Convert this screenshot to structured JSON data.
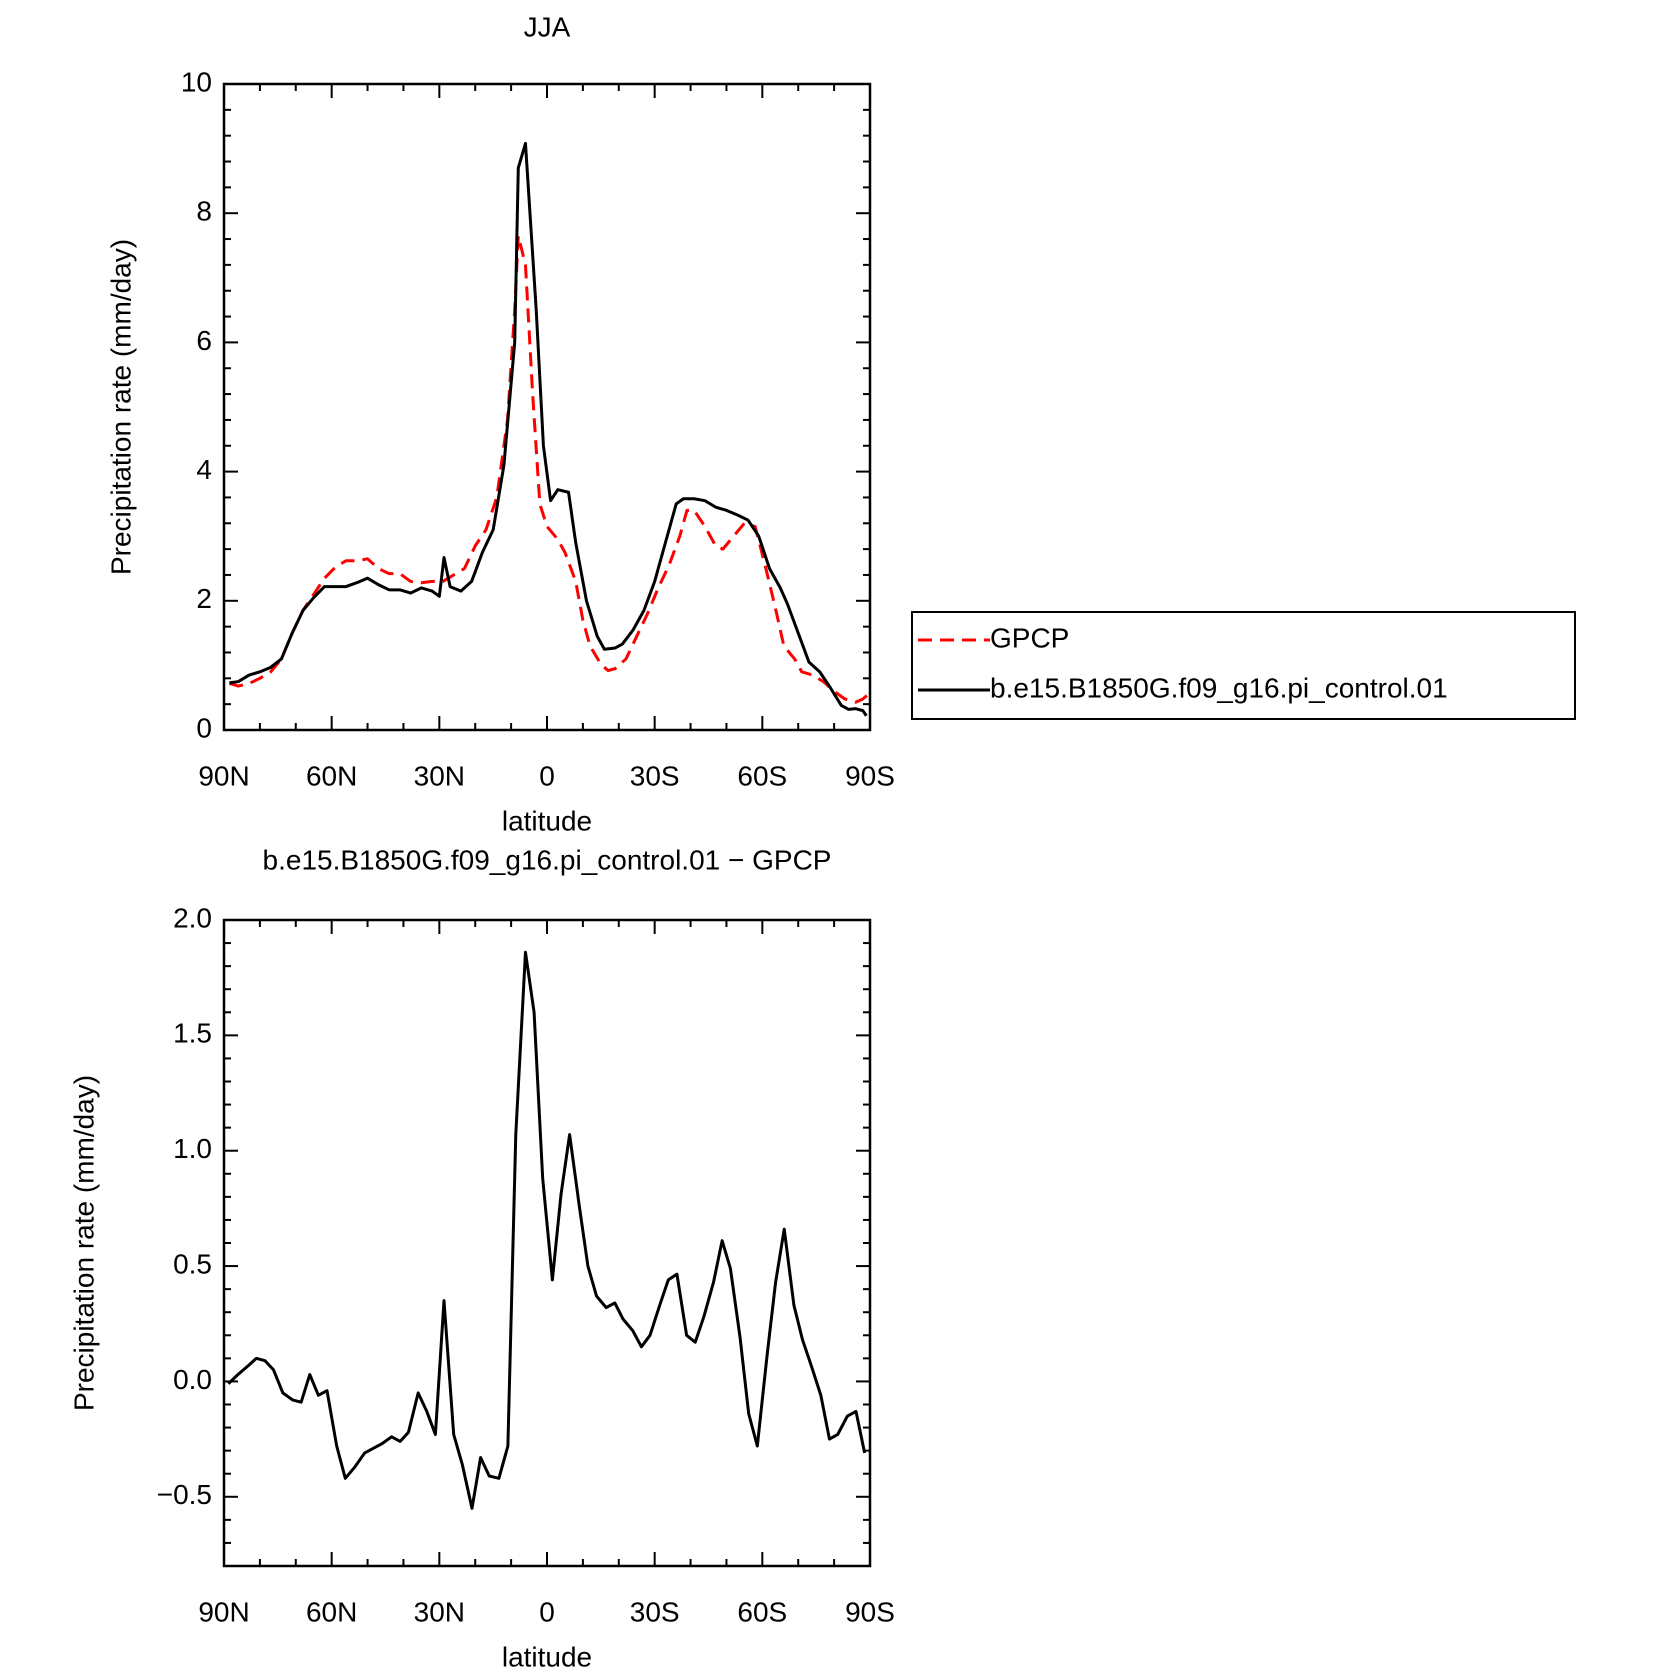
{
  "chart_data": [
    {
      "type": "line",
      "title": "JJA",
      "xlabel": "latitude",
      "ylabel": "Precipitation rate (mm/day)",
      "xlim": [
        90,
        -90
      ],
      "xticks": [
        {
          "value": 90,
          "label": "90N"
        },
        {
          "value": 60,
          "label": "60N"
        },
        {
          "value": 30,
          "label": "30N"
        },
        0,
        {
          "value": -30,
          "label": "30S"
        },
        {
          "value": -60,
          "label": "60S"
        },
        {
          "value": -90,
          "label": "90S"
        }
      ],
      "ylim": [
        0,
        10
      ],
      "yticks": [
        0,
        2,
        4,
        6,
        8,
        10
      ],
      "legend": "right",
      "series": [
        {
          "name": "GPCP",
          "color": "#ff0000",
          "linestyle": "dashed",
          "x": [
            88.5,
            86,
            83,
            80,
            77,
            74,
            71,
            68,
            65,
            62,
            59,
            56,
            53,
            50,
            47,
            44,
            41,
            38,
            35,
            32,
            29,
            26,
            23,
            20,
            17,
            14,
            11,
            9,
            8,
            6,
            4,
            2,
            0,
            -3,
            -5,
            -8,
            -10,
            -12,
            -15,
            -17,
            -19,
            -22,
            -25,
            -28,
            -31,
            -34,
            -37,
            -39,
            -41,
            -44,
            -47,
            -49,
            -52,
            -55,
            -58,
            -61,
            -64,
            -66,
            -69,
            -71,
            -74,
            -77,
            -80,
            -83,
            -86,
            -88,
            -89.5
          ],
          "values": [
            0.72,
            0.68,
            0.72,
            0.8,
            0.9,
            1.1,
            1.5,
            1.85,
            2.1,
            2.35,
            2.52,
            2.62,
            2.62,
            2.65,
            2.5,
            2.42,
            2.42,
            2.3,
            2.28,
            2.3,
            2.3,
            2.4,
            2.5,
            2.85,
            3.1,
            3.6,
            4.8,
            6.5,
            7.65,
            7.2,
            5.2,
            3.5,
            3.15,
            2.95,
            2.75,
            2.3,
            1.7,
            1.3,
            1.02,
            0.92,
            0.95,
            1.1,
            1.45,
            1.8,
            2.2,
            2.55,
            3.0,
            3.4,
            3.4,
            3.15,
            2.85,
            2.8,
            3.0,
            3.2,
            3.15,
            2.5,
            1.8,
            1.3,
            1.1,
            0.9,
            0.85,
            0.75,
            0.6,
            0.48,
            0.43,
            0.48,
            0.55
          ]
        },
        {
          "name": "b.e15.B1850G.f09_g16.pi_control.01",
          "color": "#000000",
          "linestyle": "solid",
          "x": [
            88.5,
            86,
            83,
            80,
            77,
            74,
            71,
            68,
            65,
            62,
            59,
            56,
            53,
            50,
            47,
            44,
            41,
            38,
            35,
            32,
            30,
            28.7,
            27,
            24,
            21,
            18,
            15,
            12,
            9,
            8,
            6,
            3,
            1,
            -1,
            -3,
            -6,
            -8,
            -11,
            -14,
            -16,
            -19,
            -21,
            -24,
            -27,
            -30,
            -33,
            -36,
            -38,
            -41,
            -44,
            -47,
            -50,
            -53,
            -56,
            -59,
            -62,
            -65,
            -67,
            -70,
            -73,
            -76,
            -79,
            -82,
            -84,
            -86,
            -88,
            -89
          ],
          "values": [
            0.73,
            0.75,
            0.85,
            0.9,
            0.97,
            1.1,
            1.5,
            1.85,
            2.05,
            2.22,
            2.22,
            2.22,
            2.28,
            2.35,
            2.25,
            2.17,
            2.17,
            2.12,
            2.2,
            2.15,
            2.07,
            2.67,
            2.22,
            2.15,
            2.3,
            2.75,
            3.1,
            4.1,
            6.0,
            8.7,
            9.08,
            6.5,
            4.4,
            3.55,
            3.72,
            3.68,
            2.9,
            2.0,
            1.45,
            1.25,
            1.27,
            1.33,
            1.55,
            1.85,
            2.3,
            2.9,
            3.5,
            3.58,
            3.58,
            3.55,
            3.45,
            3.4,
            3.33,
            3.25,
            3.0,
            2.5,
            2.2,
            1.95,
            1.5,
            1.05,
            0.9,
            0.65,
            0.38,
            0.32,
            0.33,
            0.3,
            0.22
          ]
        }
      ]
    },
    {
      "type": "line",
      "title": "b.e15.B1850G.f09_g16.pi_control.01 − GPCP",
      "xlabel": "latitude",
      "ylabel": "Precipitation rate (mm/day)",
      "xlim": [
        90,
        -90
      ],
      "xticks": [
        {
          "value": 90,
          "label": "90N"
        },
        {
          "value": 60,
          "label": "60N"
        },
        {
          "value": 30,
          "label": "30N"
        },
        0,
        {
          "value": -30,
          "label": "30S"
        },
        {
          "value": -60,
          "label": "60S"
        },
        {
          "value": -90,
          "label": "90S"
        }
      ],
      "ylim": [
        -0.8,
        2.0
      ],
      "yticks": [
        {
          "value": -0.5,
          "label": "−0.5"
        },
        {
          "value": 0,
          "label": "0.0"
        },
        0.5,
        {
          "value": 1,
          "label": "1.0"
        },
        1.5,
        {
          "value": 2,
          "label": "2.0"
        }
      ],
      "color": "#000000",
      "x": [
        88.8,
        86.1,
        83.1,
        81,
        78.6,
        76.2,
        73.6,
        70.9,
        68.5,
        66.1,
        63.7,
        61.3,
        58.6,
        56.2,
        53.5,
        50.8,
        48.4,
        46,
        43.3,
        40.9,
        38.6,
        35.9,
        33.5,
        31.1,
        28.7,
        26,
        23.6,
        20.9,
        18.5,
        16.1,
        13.4,
        10.9,
        8.7,
        6,
        3.6,
        1.2,
        -1.5,
        -3.9,
        -6.3,
        -9,
        -11.4,
        -13.8,
        -16.5,
        -18.9,
        -21.2,
        -23.9,
        -26.3,
        -28.7,
        -31.4,
        -33.8,
        -36.2,
        -38.9,
        -41.3,
        -43.7,
        -46.4,
        -48.8,
        -51.1,
        -53.8,
        -56.2,
        -58.6,
        -61.3,
        -63.7,
        -66.1,
        -68.8,
        -71.2,
        -73.6,
        -76.3,
        -78.7,
        -81,
        -83.7,
        -86.1,
        -88.5
      ],
      "values": [
        -0.01,
        0.03,
        0.07,
        0.1,
        0.09,
        0.05,
        -0.05,
        -0.08,
        -0.09,
        0.03,
        -0.06,
        -0.04,
        -0.28,
        -0.42,
        -0.37,
        -0.31,
        -0.29,
        -0.27,
        -0.24,
        -0.26,
        -0.22,
        -0.05,
        -0.13,
        -0.23,
        0.35,
        -0.23,
        -0.36,
        -0.55,
        -0.33,
        -0.41,
        -0.42,
        -0.28,
        1.07,
        1.86,
        1.6,
        0.88,
        0.44,
        0.81,
        1.07,
        0.76,
        0.5,
        0.37,
        0.32,
        0.34,
        0.27,
        0.22,
        0.15,
        0.2,
        0.33,
        0.44,
        0.465,
        0.2,
        0.17,
        0.28,
        0.43,
        0.61,
        0.49,
        0.19,
        -0.14,
        -0.28,
        0.11,
        0.43,
        0.66,
        0.33,
        0.18,
        0.07,
        -0.06,
        -0.25,
        -0.23,
        -0.15,
        -0.13,
        -0.31
      ]
    }
  ]
}
